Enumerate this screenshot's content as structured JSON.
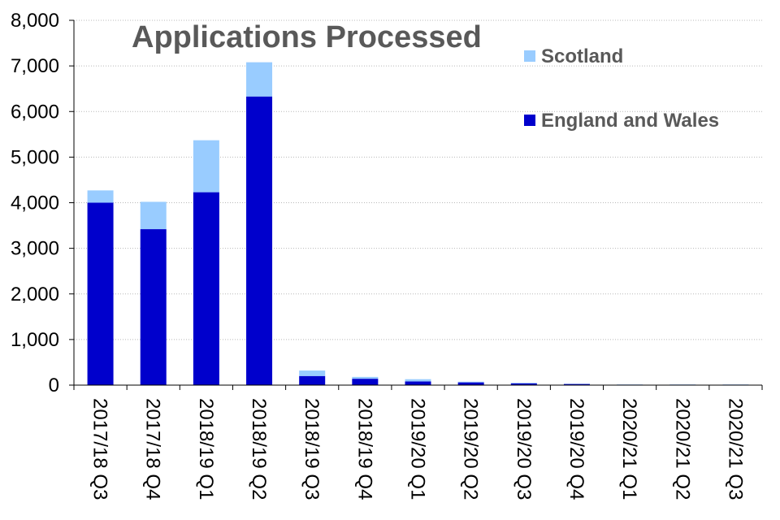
{
  "chart_data": {
    "type": "bar",
    "stacked": true,
    "title": "Applications Processed",
    "xlabel": "",
    "ylabel": "",
    "ylim": [
      0,
      8000
    ],
    "yticks": [
      "0",
      "1,000",
      "2,000",
      "3,000",
      "4,000",
      "5,000",
      "6,000",
      "7,000",
      "8,000"
    ],
    "grid": true,
    "legend_position": "top-right",
    "categories": [
      "2017/18 Q3",
      "2017/18 Q4",
      "2018/19 Q1",
      "2018/19 Q2",
      "2018/19 Q3",
      "2018/19 Q4",
      "2019/20 Q1",
      "2019/20 Q2",
      "2019/20 Q3",
      "2019/20 Q4",
      "2020/21 Q1",
      "2020/21 Q2",
      "2020/21 Q3"
    ],
    "series": [
      {
        "name": "England and Wales",
        "color": "#0000cc",
        "values": [
          4000,
          3420,
          4230,
          6330,
          200,
          140,
          80,
          60,
          40,
          25,
          10,
          10,
          10
        ]
      },
      {
        "name": "Scotland",
        "color": "#99ccff",
        "values": [
          270,
          600,
          1140,
          750,
          120,
          40,
          50,
          15,
          10,
          5,
          5,
          5,
          5
        ]
      }
    ]
  }
}
